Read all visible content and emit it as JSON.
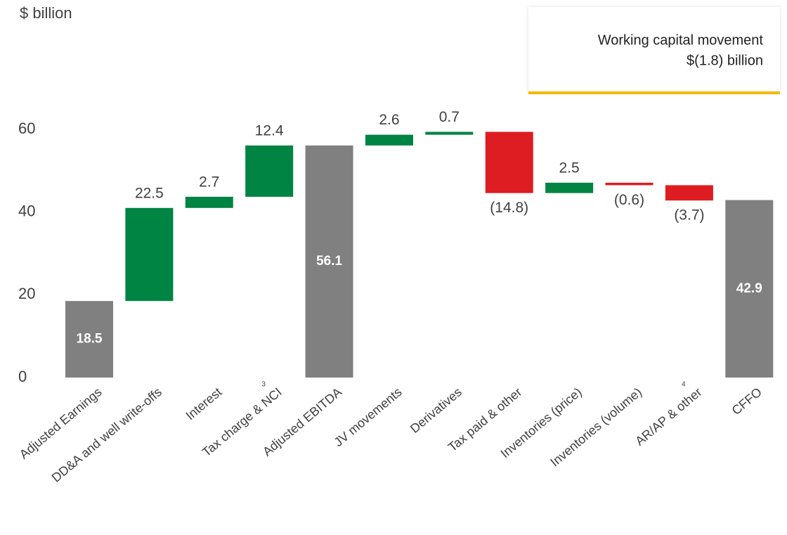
{
  "chart_data": {
    "type": "waterfall",
    "y_label": "$ billion",
    "annotation": {
      "title": "Working capital movement",
      "value": "$(1.8) billion"
    },
    "categories": [
      "Adjusted Earnings",
      "DD&A and well write-offs",
      "Interest",
      "Tax charge & NCI",
      "Adjusted EBITDA",
      "JV movements",
      "Derivatives",
      "Tax paid & other",
      "Inventories (price)",
      "Inventories (volume)",
      "AR/AP & other",
      "CFFO"
    ],
    "footnotes": [
      null,
      null,
      null,
      "3",
      null,
      null,
      null,
      null,
      null,
      null,
      "4",
      null
    ],
    "values": [
      18.5,
      22.5,
      2.7,
      12.4,
      56.1,
      2.6,
      0.7,
      -14.8,
      2.5,
      -0.6,
      -3.7,
      42.9
    ],
    "value_labels": [
      "18.5",
      "22.5",
      "2.7",
      "12.4",
      "56.1",
      "2.6",
      "0.7",
      "(14.8)",
      "2.5",
      "(0.6)",
      "(3.7)",
      "42.9"
    ],
    "bar_kinds": [
      "total",
      "delta",
      "delta",
      "delta",
      "total",
      "delta",
      "delta",
      "delta",
      "delta",
      "delta",
      "delta",
      "total"
    ],
    "colors": {
      "total": "#808080",
      "increase": "#008443",
      "decrease": "#dd1d21"
    },
    "ylim": [
      0,
      60
    ],
    "yticks": [
      0,
      20,
      40,
      60
    ],
    "grid": false
  }
}
